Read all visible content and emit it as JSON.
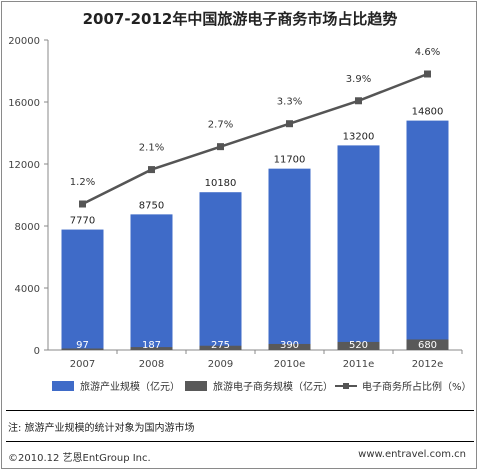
{
  "title": "2007-2012年中国旅游电子商务市场占比趋势",
  "chart_data": {
    "type": "bar",
    "categories": [
      "2007",
      "2008",
      "2009",
      "2010e",
      "2011e",
      "2012e"
    ],
    "series": [
      {
        "name": "旅游产业规模（亿元）",
        "type": "bar",
        "values": [
          7770,
          8750,
          10180,
          11700,
          13200,
          14800
        ],
        "color": "#3f6bc8"
      },
      {
        "name": "旅游电子商务规模（亿元）",
        "type": "bar",
        "values": [
          97,
          187,
          275,
          390,
          520,
          680
        ],
        "color": "#595959"
      },
      {
        "name": "电子商务所占比例（%）",
        "type": "line",
        "values": [
          1.2,
          2.1,
          2.7,
          3.3,
          3.9,
          4.6
        ],
        "labels": [
          "1.2%",
          "2.1%",
          "2.7%",
          "3.3%",
          "3.9%",
          "4.6%"
        ],
        "color": "#555555"
      }
    ],
    "yticks": [
      "0",
      "4000",
      "8000",
      "12000",
      "16000",
      "20000"
    ],
    "ylim": [
      0,
      20000
    ],
    "legend_position": "bottom",
    "grid": false
  },
  "note": "注: 旅游产业规模的统计对象为国内游市场",
  "footer": {
    "copyright": "©2010.12  艺恩EntGroup Inc.",
    "website": "www.entravel.com.cn"
  }
}
